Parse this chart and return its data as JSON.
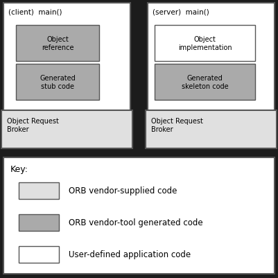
{
  "bg_color": "#1c1c1c",
  "box_bg_light": "#e0e0e0",
  "box_bg_gray": "#aaaaaa",
  "box_bg_white": "#ffffff",
  "box_border": "#555555",
  "text_color": "#000000",
  "title_fontsize": 7.5,
  "label_fontsize": 7.0,
  "key_fontsize": 8.5,
  "key_title_fontsize": 9,
  "client_title": "(client)  main()",
  "server_title": "(server)  main()",
  "client_inner1_text": "Object\nreference",
  "client_inner2_text": "Generated\nstub code",
  "client_orb_text": "Object Request\nBroker",
  "server_inner1_text": "Object\nimplementation",
  "server_inner2_text": "Generated\nskeleton code",
  "server_orb_text": "Object Request\nBroker",
  "key_title": "Key:",
  "key_item1": "ORB vendor-supplied code",
  "key_item2": "ORB vendor-tool generated code",
  "key_item3": "User-defined application code"
}
